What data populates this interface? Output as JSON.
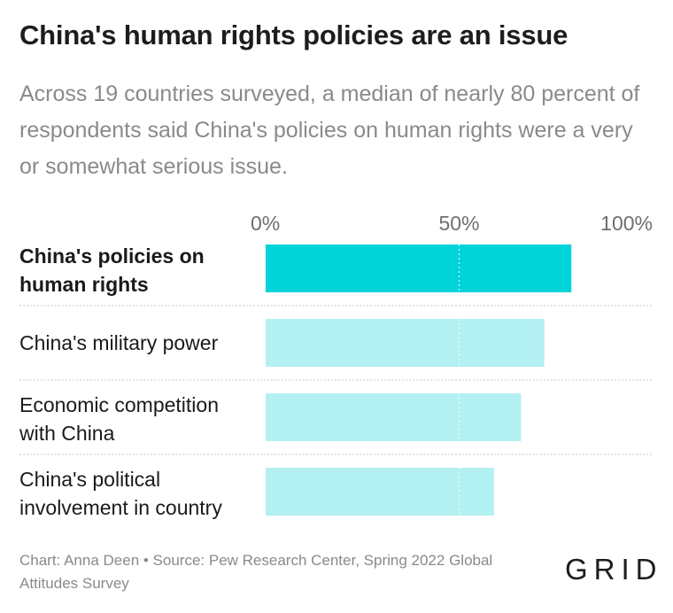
{
  "header": {
    "title": "China's human rights policies are an issue",
    "subtitle": "Across 19 countries surveyed, a median of nearly 80 percent of respondents said China's policies on human rights were a very or somewhat serious issue."
  },
  "chart_data": {
    "type": "bar",
    "orientation": "horizontal",
    "categories": [
      [
        "China's policies on",
        "human rights"
      ],
      [
        "China's military power"
      ],
      [
        "Economic competition",
        "with China"
      ],
      [
        "China's political",
        "involvement in country"
      ]
    ],
    "values": [
      79,
      72,
      66,
      59
    ],
    "highlight": [
      true,
      false,
      false,
      false
    ],
    "xlim": [
      0,
      100
    ],
    "ticks": [
      0,
      50,
      100
    ],
    "tick_labels": [
      "0%",
      "50%",
      "100%"
    ],
    "colors": {
      "highlight": "#00d4d8",
      "normal": "#b3f0f2",
      "gridline": "#ffffff",
      "separator": "#c8c8c8"
    }
  },
  "footer": {
    "credit": "Chart: Anna Deen • Source: Pew Research Center, Spring 2022 Global Attitudes Survey",
    "logo": "GRID"
  }
}
